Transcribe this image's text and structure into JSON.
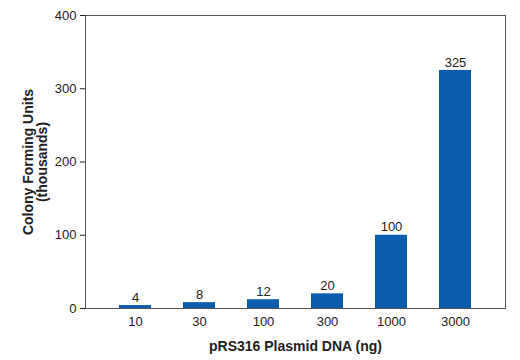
{
  "chart_data": {
    "type": "bar",
    "xlabel": "pRS316 Plasmid DNA (ng)",
    "ylabel": "Colony Forming Units\n(thousands)",
    "categories": [
      "10",
      "30",
      "100",
      "300",
      "1000",
      "3000"
    ],
    "values": [
      4,
      8,
      12,
      20,
      100,
      325
    ],
    "color": "#0b5cad",
    "ylim": [
      0,
      400
    ],
    "yticks": [
      0,
      100,
      200,
      300,
      400
    ],
    "grid": false,
    "data_labels": true
  }
}
